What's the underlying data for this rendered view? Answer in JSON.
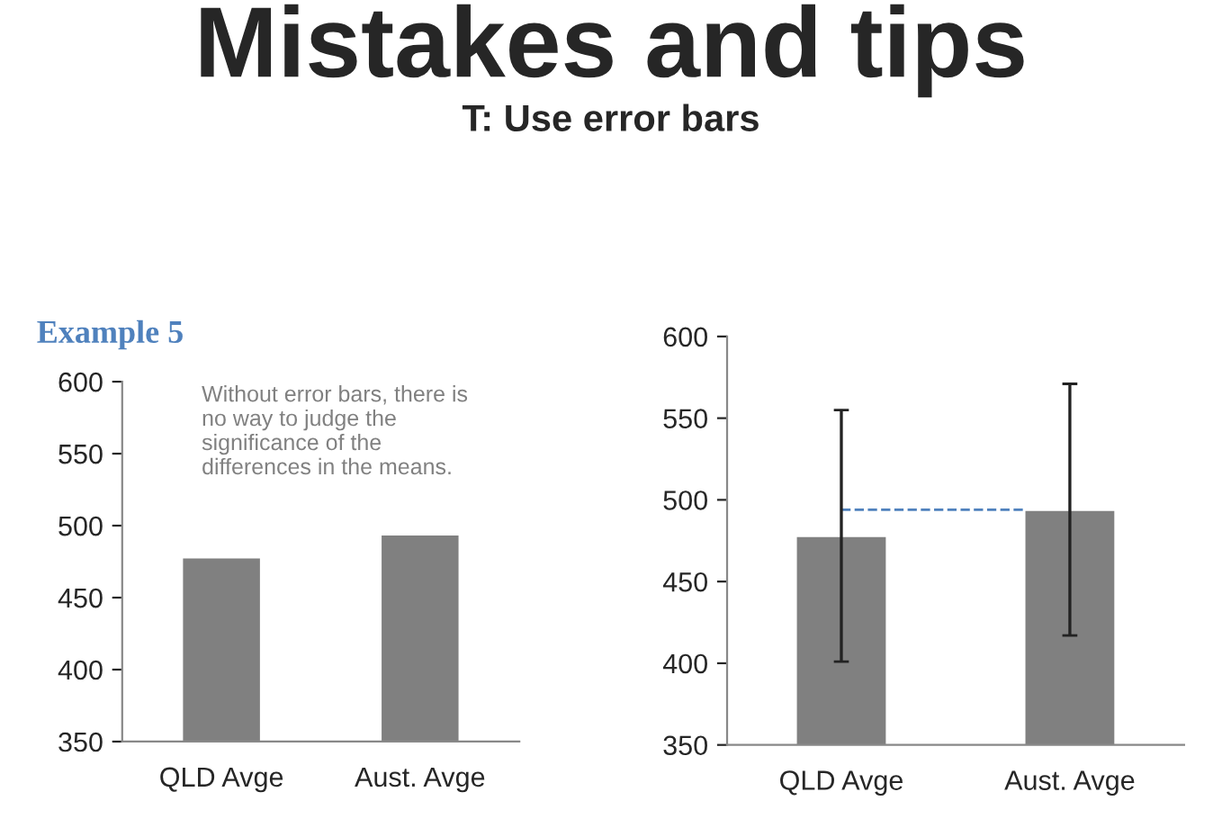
{
  "chart_data": [
    {
      "type": "bar",
      "title": "Mistakes and tips",
      "subtitle": "T: Use error bars",
      "annotations": [
        "Example 5",
        "Without error bars, there is\nno way to judge the\nsignificance of the\ndifferences in the means."
      ],
      "categories": [
        "QLD Avge",
        "Aust. Avge"
      ],
      "values": [
        478,
        494
      ],
      "color": "#808080",
      "ylim": [
        350,
        600
      ],
      "yticks": [
        350,
        400,
        450,
        500,
        550,
        600
      ],
      "grid": false
    },
    {
      "type": "bar",
      "categories": [
        "QLD Avge",
        "Aust. Avge"
      ],
      "values": [
        478,
        494
      ],
      "errors": [
        77,
        77
      ],
      "color": "#808080",
      "ylim": [
        350,
        600
      ],
      "yticks": [
        350,
        400,
        450,
        500,
        550,
        600
      ],
      "grid": false,
      "ref_lines": [
        {
          "axis": "y",
          "value": 494,
          "label": null,
          "color": "#4f81bd",
          "line_style": "dashed"
        }
      ]
    }
  ]
}
